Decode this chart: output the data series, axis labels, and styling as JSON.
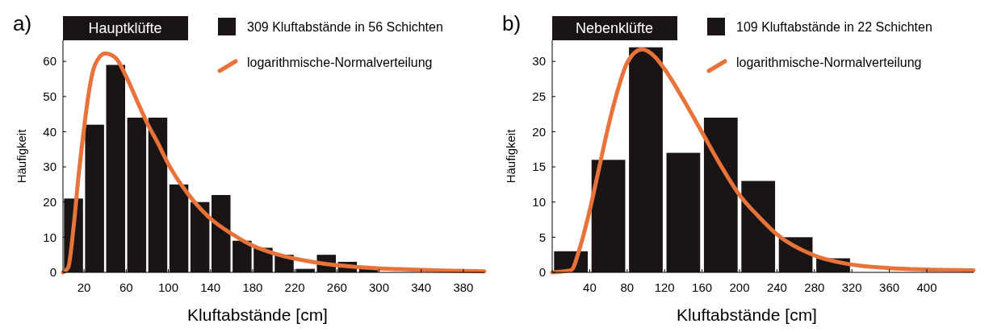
{
  "chart_data": [
    {
      "type": "histogram",
      "title": "Hauptklüfte",
      "xlabel": "Kluftabstände [cm]",
      "ylabel": "Häufigkeit",
      "annotations": [
        "a)"
      ],
      "legend": "top right",
      "grid": false,
      "xlim": [
        0,
        400
      ],
      "xticks": [
        20,
        60,
        100,
        140,
        180,
        220,
        260,
        300,
        340,
        380
      ],
      "ylim": [
        0,
        66
      ],
      "yticks": [
        0,
        10,
        20,
        30,
        40,
        50,
        60
      ],
      "series": [
        {
          "name": "309 Kluftabstände in 56 Schichten",
          "color": "#1a1414",
          "bins": [
            0,
            20,
            40,
            60,
            80,
            100,
            120,
            140,
            160,
            180,
            200,
            220,
            240,
            260,
            280,
            300
          ],
          "values": [
            21,
            42,
            59,
            44,
            44,
            25,
            20,
            22,
            9,
            7,
            5,
            1,
            5,
            3,
            1
          ]
        },
        {
          "type": "line",
          "name": "logarithmische-Normalverteilung",
          "color": "#e8733a",
          "x": [
            0,
            5,
            10,
            15,
            20,
            25,
            30,
            40,
            50,
            60,
            70,
            80,
            90,
            100,
            120,
            140,
            160,
            180,
            200,
            240,
            280,
            320,
            360,
            400
          ],
          "values": [
            0,
            1.4,
            12.7,
            28,
            41,
            52,
            58.7,
            62.3,
            61,
            55.7,
            49,
            42.4,
            36.8,
            30.8,
            21.8,
            15.3,
            11,
            7.6,
            5.4,
            2.8,
            1.5,
            0.9,
            0.5,
            0.3
          ]
        }
      ]
    },
    {
      "type": "histogram",
      "title": "Nebenklüfte",
      "xlabel": "Kluftabstände [cm]",
      "ylabel": "Häufigkeit",
      "annotations": [
        "b)"
      ],
      "legend": "top right",
      "grid": false,
      "xlim": [
        0,
        450
      ],
      "xticks": [
        40,
        80,
        120,
        160,
        200,
        240,
        280,
        320,
        360,
        400
      ],
      "ylim": [
        0,
        33
      ],
      "yticks": [
        0,
        5,
        10,
        15,
        20,
        25,
        30
      ],
      "series": [
        {
          "name": "109 Kluftabstände in 22 Schichten",
          "color": "#1a1414",
          "bins": [
            0,
            40,
            80,
            120,
            160,
            200,
            240,
            280,
            320
          ],
          "values": [
            3,
            16,
            32,
            17,
            22,
            13,
            5,
            2
          ]
        },
        {
          "type": "line",
          "name": "logarithmische-Normalverteilung",
          "color": "#e8733a",
          "x": [
            0,
            20,
            30,
            40,
            50,
            60,
            70,
            80,
            96,
            110,
            120,
            140,
            160,
            180,
            200,
            220,
            240,
            280,
            320,
            360,
            400,
            450
          ],
          "values": [
            0,
            0.3,
            3.7,
            8.8,
            14.8,
            20.8,
            25.9,
            29.8,
            31.7,
            30.6,
            28.9,
            24.6,
            19.9,
            15.2,
            11,
            8,
            5.4,
            2.4,
            1.1,
            0.6,
            0.4,
            0.3
          ]
        }
      ]
    }
  ]
}
